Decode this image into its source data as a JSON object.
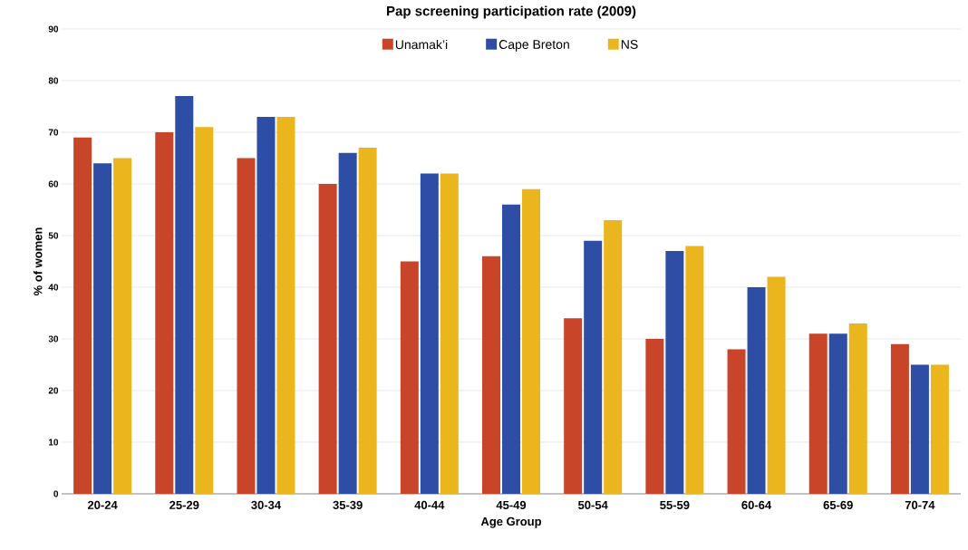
{
  "chart_data": {
    "type": "bar",
    "title": "Pap screening participation rate (2009)",
    "xlabel": "Age Group",
    "ylabel": "% of women",
    "categories": [
      "20-24",
      "25-29",
      "30-34",
      "35-39",
      "40-44",
      "45-49",
      "50-54",
      "55-59",
      "60-64",
      "65-69",
      "70-74"
    ],
    "series": [
      {
        "name": "Unamak’i",
        "color": "#c8452a",
        "values": [
          69,
          70,
          65,
          60,
          45,
          46,
          34,
          30,
          28,
          31,
          29
        ]
      },
      {
        "name": "Cape Breton",
        "color": "#2e4ea6",
        "values": [
          64,
          77,
          73,
          66,
          62,
          56,
          49,
          47,
          40,
          31,
          25
        ]
      },
      {
        "name": "NS",
        "color": "#ebb51e",
        "values": [
          65,
          71,
          73,
          67,
          62,
          59,
          53,
          48,
          42,
          33,
          25
        ]
      }
    ],
    "ylim": [
      0,
      90
    ],
    "yticks": [
      0,
      10,
      20,
      30,
      40,
      50,
      60,
      70,
      80,
      90
    ],
    "grid": "y",
    "legend": "top"
  }
}
